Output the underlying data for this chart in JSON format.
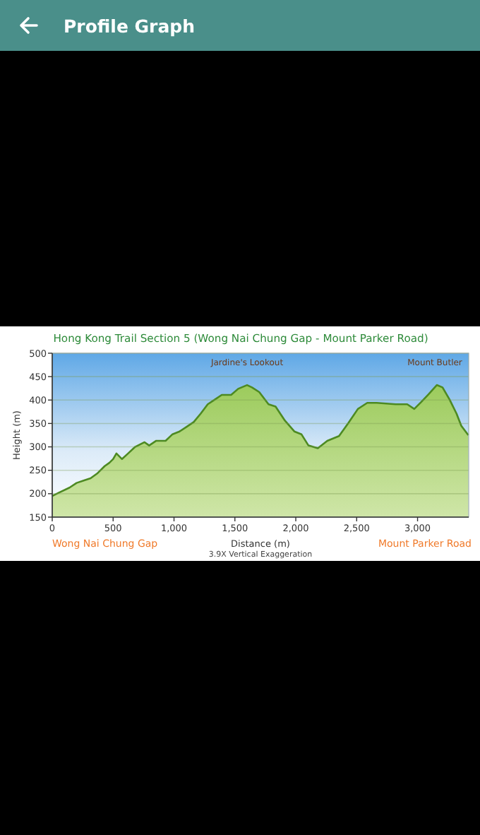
{
  "chart_data": {
    "type": "area",
    "title": "Hong Kong Trail Section 5 (Wong Nai Chung Gap - Mount Parker Road)",
    "xlabel": "Distance (m)",
    "ylabel": "Height (m)",
    "x": [
      0,
      46,
      142,
      200,
      258,
      315,
      373,
      431,
      469,
      500,
      527,
      573,
      623,
      681,
      758,
      796,
      854,
      931,
      988,
      1046,
      1104,
      1162,
      1219,
      1277,
      1335,
      1392,
      1469,
      1527,
      1600,
      1640,
      1700,
      1776,
      1834,
      1911,
      1988,
      2046,
      2104,
      2181,
      2259,
      2355,
      2432,
      2510,
      2587,
      2664,
      2819,
      2915,
      2973,
      3031,
      3089,
      3158,
      3205,
      3263,
      3320,
      3359,
      3417
    ],
    "series": [
      {
        "color": "#9ccb5c",
        "values": [
          195,
          201,
          213,
          223,
          228,
          233,
          244,
          259,
          266,
          274,
          286,
          274,
          286,
          300,
          310,
          303,
          313,
          313,
          327,
          333,
          343,
          353,
          371,
          391,
          401,
          411,
          411,
          424,
          432,
          427,
          417,
          391,
          386,
          356,
          333,
          327,
          303,
          297,
          313,
          323,
          351,
          381,
          394,
          394,
          391,
          391,
          381,
          396,
          412,
          432,
          427,
          401,
          371,
          345,
          325
        ]
      }
    ],
    "xlim": [
      0,
      3420
    ],
    "ylim": [
      150,
      500
    ],
    "xticks": [
      0,
      500,
      {
        "value": 1000,
        "label": "1,000"
      },
      {
        "value": 1500,
        "label": "1,500"
      },
      {
        "value": 2000,
        "label": "2,000"
      },
      {
        "value": 2500,
        "label": "2,500"
      },
      {
        "value": 3000,
        "label": "3,000"
      }
    ],
    "yticks": [
      150,
      200,
      250,
      300,
      350,
      400,
      450,
      500
    ],
    "grid": "y",
    "line_style": "solid",
    "marker": "none",
    "annotations": [
      "Profile Graph",
      "Wong Nai Chung Gap",
      "Mount Parker Road",
      "3.9X Vertical Exaggeration",
      {
        "text": "Jardine's Lookout",
        "x": 1600,
        "y": 432
      },
      {
        "text": "Mount Butler",
        "x": 3158,
        "y": 432
      }
    ]
  }
}
